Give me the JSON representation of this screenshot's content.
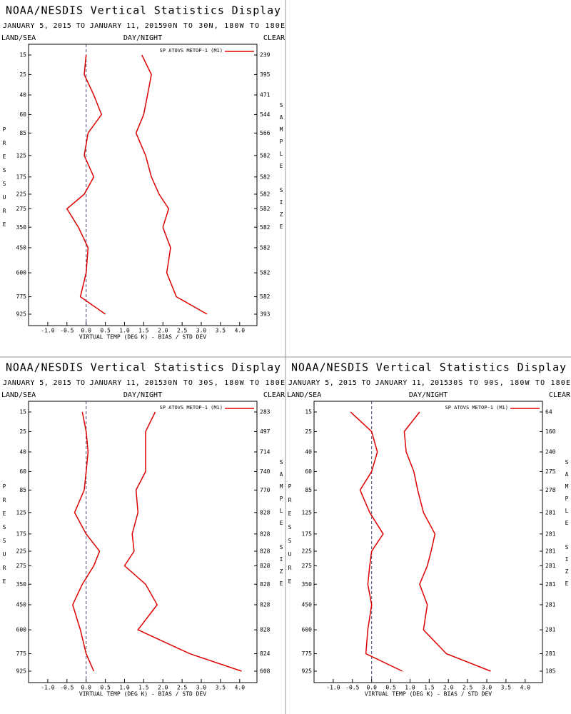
{
  "chart_data": [
    {
      "type": "line",
      "title": "NOAA/NESDIS Vertical Statistics Display",
      "date_range": "JANUARY 5, 2015 TO JANUARY 11, 2015",
      "region": "90N TO 30N, 180W TO 180E",
      "land_sea": "LAND/SEA",
      "day_night": "DAY/NIGHT",
      "clear": "CLEAR",
      "y_label": "PRESSURE",
      "y2_label": "SAMPLE SIZE",
      "x_label": "VIRTUAL TEMP (DEG K) - BIAS / STD DEV",
      "categories": [
        15,
        25,
        40,
        60,
        85,
        125,
        175,
        225,
        275,
        350,
        450,
        600,
        775,
        925
      ],
      "sample_size": [
        239,
        395,
        471,
        544,
        566,
        582,
        582,
        582,
        582,
        582,
        582,
        582,
        582,
        393
      ],
      "xlim": [
        -1.5,
        4.45
      ],
      "xticks": [
        {
          "value": -1,
          "label": "-1.0"
        },
        {
          "value": -0.5,
          "label": "-0.5"
        },
        {
          "value": 0,
          "label": "0.0"
        },
        {
          "value": 0.5,
          "label": "0.5"
        },
        {
          "value": 1,
          "label": "1.0"
        },
        {
          "value": 1.5,
          "label": "1.5"
        },
        {
          "value": 2,
          "label": "2.0"
        },
        {
          "value": 2.5,
          "label": "2.5"
        },
        {
          "value": 3,
          "label": "3.0"
        },
        {
          "value": 3.5,
          "label": "3.5"
        },
        {
          "value": 4,
          "label": "4.0"
        }
      ],
      "series": [
        {
          "name": "SP ATOVS METOP-1 (M1)",
          "color": "#dd0000",
          "values": [
            0.0,
            -0.05,
            0.2,
            0.4,
            0.05,
            -0.05,
            0.2,
            -0.05,
            -0.5,
            -0.2,
            0.05,
            0.0,
            -0.15,
            0.5
          ]
        },
        {
          "color": "#dd0000",
          "values": [
            1.45,
            1.7,
            1.6,
            1.5,
            1.3,
            1.55,
            1.7,
            1.9,
            2.15,
            2.0,
            2.2,
            2.1,
            2.35,
            3.15
          ]
        }
      ]
    },
    {
      "type": "line",
      "title": "NOAA/NESDIS Vertical Statistics Display",
      "date_range": "JANUARY 5, 2015 TO JANUARY 11, 2015",
      "region": "30N TO 30S, 180W TO 180E",
      "land_sea": "LAND/SEA",
      "day_night": "DAY/NIGHT",
      "clear": "CLEAR",
      "y_label": "PRESSURE",
      "y2_label": "SAMPLE SIZE",
      "x_label": "VIRTUAL TEMP (DEG K) - BIAS / STD DEV",
      "categories": [
        15,
        25,
        40,
        60,
        85,
        125,
        175,
        225,
        275,
        350,
        450,
        600,
        775,
        925
      ],
      "sample_size": [
        283,
        497,
        714,
        740,
        770,
        828,
        828,
        828,
        828,
        828,
        828,
        828,
        824,
        608
      ],
      "xlim": [
        -1.5,
        4.45
      ],
      "xticks": [
        {
          "value": -1,
          "label": "-1.0"
        },
        {
          "value": -0.5,
          "label": "-0.5"
        },
        {
          "value": 0,
          "label": "0.0"
        },
        {
          "value": 0.5,
          "label": "0.5"
        },
        {
          "value": 1,
          "label": "1.0"
        },
        {
          "value": 1.5,
          "label": "1.5"
        },
        {
          "value": 2,
          "label": "2.0"
        },
        {
          "value": 2.5,
          "label": "2.5"
        },
        {
          "value": 3,
          "label": "3.0"
        },
        {
          "value": 3.5,
          "label": "3.5"
        },
        {
          "value": 4,
          "label": "4.0"
        }
      ],
      "series": [
        {
          "name": "SP ATOVS METOP-1 (M1)",
          "color": "#dd0000",
          "values": [
            -0.1,
            0.0,
            0.05,
            0.0,
            -0.05,
            -0.3,
            0.0,
            0.35,
            0.2,
            -0.1,
            -0.35,
            -0.15,
            0.0,
            0.2
          ]
        },
        {
          "color": "#dd0000",
          "values": [
            1.8,
            1.55,
            1.55,
            1.55,
            1.3,
            1.35,
            1.2,
            1.25,
            1.0,
            1.55,
            1.85,
            1.35,
            2.7,
            4.05
          ]
        }
      ]
    },
    {
      "type": "line",
      "title": "NOAA/NESDIS Vertical Statistics Display",
      "date_range": "JANUARY 5, 2015 TO JANUARY 11, 2015",
      "region": "30S TO 90S, 180W TO 180E",
      "land_sea": "LAND/SEA",
      "day_night": "DAY/NIGHT",
      "clear": "CLEAR",
      "y_label": "PRESSURE",
      "y2_label": "SAMPLE SIZE",
      "x_label": "VIRTUAL TEMP (DEG K) - BIAS / STD DEV",
      "categories": [
        15,
        25,
        40,
        60,
        85,
        125,
        175,
        225,
        275,
        350,
        450,
        600,
        775,
        925
      ],
      "sample_size": [
        64,
        160,
        240,
        275,
        278,
        281,
        281,
        281,
        281,
        281,
        281,
        281,
        281,
        185
      ],
      "xlim": [
        -1.5,
        4.45
      ],
      "xticks": [
        {
          "value": -1,
          "label": "-1.0"
        },
        {
          "value": -0.5,
          "label": "-0.5"
        },
        {
          "value": 0,
          "label": "0.0"
        },
        {
          "value": 0.5,
          "label": "0.5"
        },
        {
          "value": 1,
          "label": "1.0"
        },
        {
          "value": 1.5,
          "label": "1.5"
        },
        {
          "value": 2,
          "label": "2.0"
        },
        {
          "value": 2.5,
          "label": "2.5"
        },
        {
          "value": 3,
          "label": "3.0"
        },
        {
          "value": 3.5,
          "label": "3.5"
        },
        {
          "value": 4,
          "label": "4.0"
        }
      ],
      "series": [
        {
          "name": "SP ATOVS METOP-1 (M1)",
          "color": "#dd0000",
          "values": [
            -0.55,
            0.0,
            0.15,
            0.0,
            -0.3,
            -0.05,
            0.3,
            0.0,
            -0.05,
            -0.1,
            0.0,
            -0.1,
            -0.15,
            0.8
          ]
        },
        {
          "color": "#dd0000",
          "values": [
            1.25,
            0.85,
            0.9,
            1.1,
            1.2,
            1.35,
            1.65,
            1.55,
            1.45,
            1.25,
            1.45,
            1.35,
            1.95,
            3.1
          ]
        }
      ]
    }
  ]
}
